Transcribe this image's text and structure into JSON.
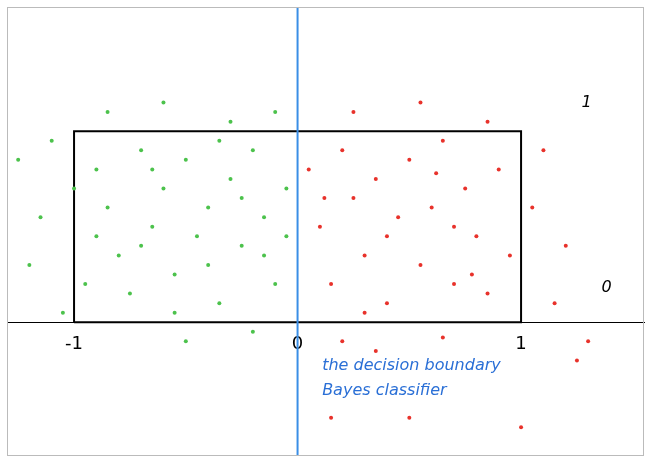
{
  "chart_data": {
    "type": "scatter",
    "xlim": [
      -1.3,
      1.55
    ],
    "xticks": [
      -1,
      0,
      1
    ],
    "ylim": [
      -0.7,
      1.65
    ],
    "tick_labels": "x",
    "grid": false,
    "box": {
      "x": [
        -1,
        1
      ],
      "y": [
        0,
        1
      ],
      "color": "#000000"
    },
    "boundary": {
      "x": 0,
      "color": "#3a8ee6"
    },
    "series": [
      {
        "color": "#4cc24c",
        "marker": "dot",
        "x": [
          -1.25,
          -1.15,
          -1.2,
          -1.1,
          -0.9,
          -0.85,
          -0.8,
          -0.75,
          -0.7,
          -0.65,
          -0.6,
          -0.55,
          -0.5,
          -0.45,
          -0.4,
          -0.35,
          -0.3,
          -0.25,
          -0.2,
          -0.15,
          -0.1,
          -0.05,
          -0.95,
          -0.6,
          -0.3,
          -0.1,
          -0.2,
          -0.5,
          -0.85,
          -1.05,
          -0.7,
          -0.4,
          -0.15,
          -0.9,
          -0.35,
          -0.55,
          -0.05,
          -1.0,
          -0.65,
          -0.25
        ],
        "y": [
          0.85,
          0.55,
          0.3,
          0.95,
          0.8,
          0.6,
          0.35,
          0.15,
          0.9,
          0.5,
          0.7,
          0.25,
          0.85,
          0.45,
          0.6,
          0.1,
          0.75,
          0.4,
          0.9,
          0.55,
          0.2,
          0.7,
          0.2,
          1.15,
          1.05,
          1.1,
          -0.05,
          -0.1,
          1.1,
          0.05,
          0.4,
          0.3,
          0.35,
          0.45,
          0.95,
          0.05,
          0.45,
          0.7,
          0.8,
          0.65
        ]
      },
      {
        "color": "#e8322b",
        "marker": "dot",
        "x": [
          0.05,
          0.1,
          0.15,
          0.2,
          0.25,
          0.3,
          0.35,
          0.4,
          0.45,
          0.5,
          0.55,
          0.6,
          0.65,
          0.7,
          0.75,
          0.8,
          0.85,
          0.9,
          0.95,
          0.25,
          0.55,
          0.85,
          1.1,
          1.2,
          1.15,
          1.3,
          0.2,
          0.35,
          0.65,
          0.5,
          0.15,
          1.0,
          1.25,
          0.4,
          0.7,
          0.12,
          0.3,
          0.78,
          0.62,
          1.05
        ],
        "y": [
          0.8,
          0.5,
          0.2,
          0.9,
          0.65,
          0.35,
          0.75,
          0.1,
          0.55,
          0.85,
          0.3,
          0.6,
          0.95,
          0.2,
          0.7,
          0.45,
          0.15,
          0.8,
          0.35,
          1.1,
          1.15,
          1.05,
          0.9,
          0.4,
          0.1,
          -0.1,
          -0.1,
          -0.15,
          -0.08,
          -0.5,
          -0.5,
          -0.55,
          -0.2,
          0.45,
          0.5,
          0.65,
          0.05,
          0.25,
          0.78,
          0.6
        ]
      }
    ],
    "annotations": [
      {
        "text": "the decision boundary",
        "x": 0.11,
        "y": -0.23,
        "color": "#2a6fd6"
      },
      {
        "text": "Bayes classifier",
        "x": 0.11,
        "y": -0.36,
        "color": "#2a6fd6"
      },
      {
        "text": "1",
        "x": 1.27,
        "y": 1.15,
        "color": "#000000"
      },
      {
        "text": "0",
        "x": 1.36,
        "y": 0.18,
        "color": "#000000"
      }
    ]
  }
}
